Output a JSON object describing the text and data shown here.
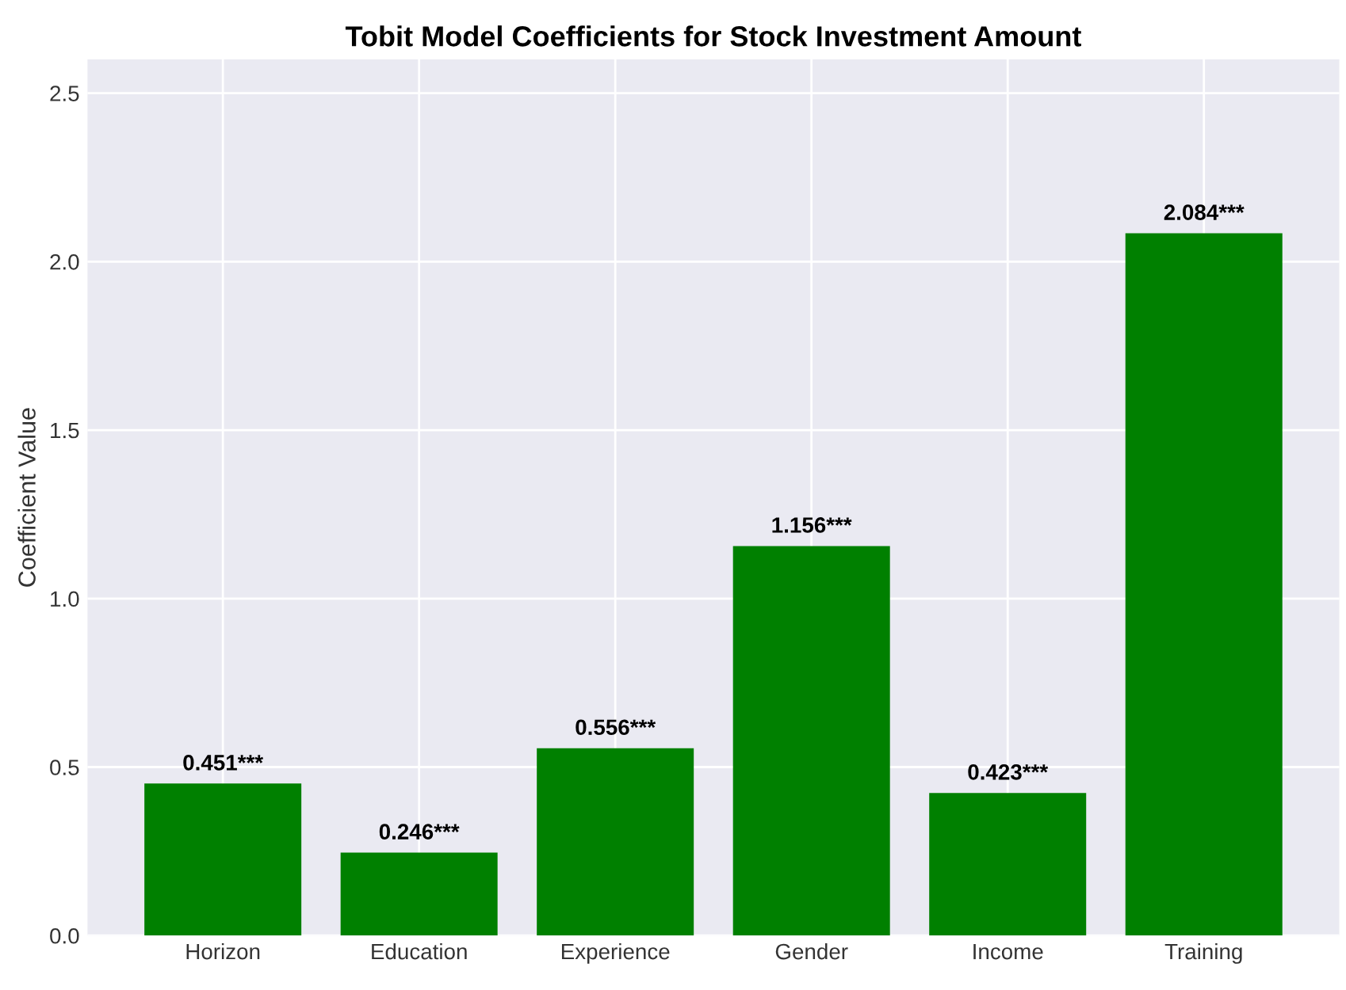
{
  "chart_data": {
    "type": "bar",
    "title": "Tobit Model Coefficients for Stock Investment Amount",
    "ylabel": "Coefficient Value",
    "categories": [
      "Horizon",
      "Education",
      "Experience",
      "Gender",
      "Income",
      "Training"
    ],
    "values": [
      0.451,
      0.246,
      0.556,
      1.156,
      0.423,
      2.084
    ],
    "value_labels": [
      "0.451***",
      "0.246***",
      "0.556***",
      "1.156***",
      "0.423***",
      "2.084***"
    ],
    "color": "#008000",
    "ylim": [
      0,
      2.6
    ],
    "yticks": [
      {
        "value": 0,
        "label": "0.0"
      },
      0.5,
      {
        "value": 1,
        "label": "1.0"
      },
      1.5,
      {
        "value": 2,
        "label": "2.0"
      },
      2.5
    ],
    "grid": true
  }
}
